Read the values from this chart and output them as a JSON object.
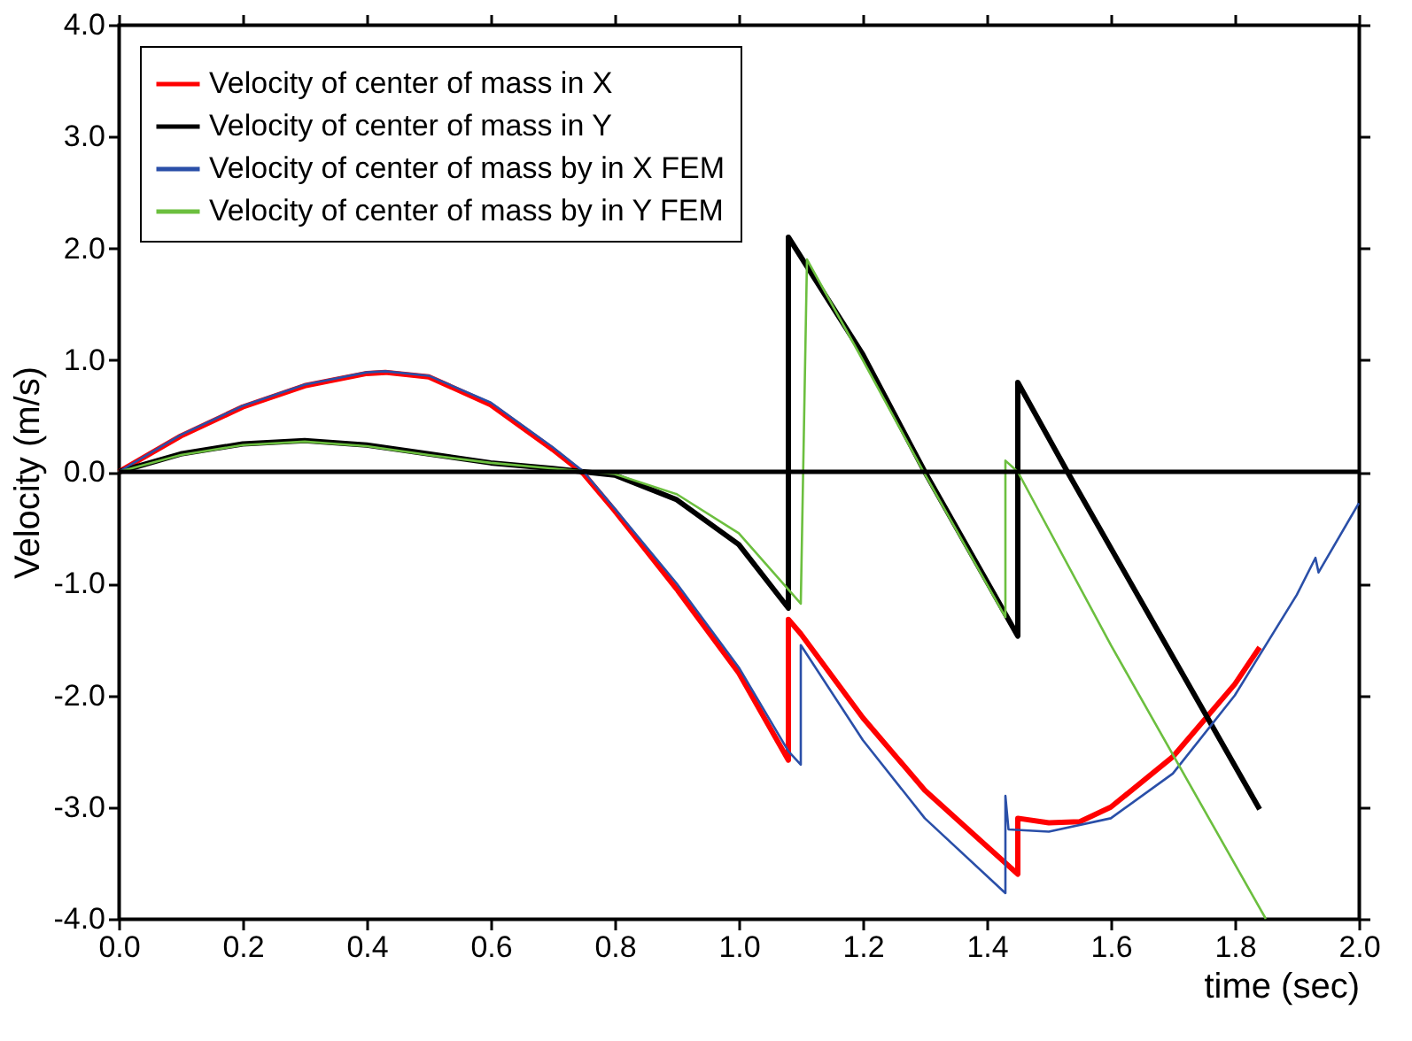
{
  "chart_data": {
    "type": "line",
    "xlabel": "time (sec)",
    "ylabel": "Velocity (m/s)",
    "xlim": [
      0,
      2
    ],
    "ylim": [
      -4,
      4
    ],
    "xticks": [
      {
        "value": 0,
        "label": "0.0"
      },
      {
        "value": 0.2,
        "label": "0.2"
      },
      {
        "value": 0.4,
        "label": "0.4"
      },
      {
        "value": 0.6,
        "label": "0.6"
      },
      {
        "value": 0.8,
        "label": "0.8"
      },
      {
        "value": 1,
        "label": "1.0"
      },
      {
        "value": 1.2,
        "label": "1.2"
      },
      {
        "value": 1.4,
        "label": "1.4"
      },
      {
        "value": 1.6,
        "label": "1.6"
      },
      {
        "value": 1.8,
        "label": "1.8"
      },
      {
        "value": 2,
        "label": "2.0"
      }
    ],
    "yticks": [
      {
        "value": -4,
        "label": "-4.0"
      },
      {
        "value": -3,
        "label": "-3.0"
      },
      {
        "value": -2,
        "label": "-2.0"
      },
      {
        "value": -1,
        "label": "-1.0"
      },
      {
        "value": 0,
        "label": "0.0"
      },
      {
        "value": 1,
        "label": "1.0"
      },
      {
        "value": 2,
        "label": "2.0"
      },
      {
        "value": 3,
        "label": "3.0"
      },
      {
        "value": 4,
        "label": "4.0"
      }
    ],
    "grid": false,
    "legend": "top left",
    "marker": "none",
    "line_style": "solid",
    "ref_lines": [
      {
        "axis": "y",
        "value": 0,
        "color": "#000000"
      }
    ],
    "series": [
      {
        "name": "Velocity of center of mass in X",
        "color": "#ff0000",
        "x": [
          0,
          0.1,
          0.2,
          0.3,
          0.4,
          0.43,
          0.5,
          0.6,
          0.7,
          0.75,
          0.8,
          0.9,
          1.0,
          1.08,
          1.08,
          1.1,
          1.2,
          1.3,
          1.4,
          1.45,
          1.45,
          1.5,
          1.55,
          1.6,
          1.7,
          1.8,
          1.84
        ],
        "values": [
          0,
          0.32,
          0.58,
          0.77,
          0.88,
          0.89,
          0.85,
          0.6,
          0.2,
          -0.02,
          -0.35,
          -1.05,
          -1.8,
          -2.58,
          -1.32,
          -1.45,
          -2.2,
          -2.85,
          -3.35,
          -3.6,
          -3.1,
          -3.14,
          -3.13,
          -3.0,
          -2.55,
          -1.9,
          -1.57
        ]
      },
      {
        "name": "Velocity of center of mass in Y",
        "color": "#000000",
        "x": [
          0,
          0.1,
          0.2,
          0.3,
          0.4,
          0.5,
          0.6,
          0.7,
          0.8,
          0.9,
          1.0,
          1.08,
          1.08,
          1.2,
          1.3,
          1.45,
          1.45,
          1.53,
          1.84
        ],
        "values": [
          0,
          0.16,
          0.25,
          0.28,
          0.24,
          0.16,
          0.08,
          0.03,
          -0.03,
          -0.25,
          -0.65,
          -1.22,
          2.1,
          1.05,
          0.0,
          -1.47,
          0.8,
          0.0,
          -3.02
        ]
      },
      {
        "name": "Velocity of center of mass by in X FEM",
        "color": "#2a4fa8",
        "x": [
          0,
          0.1,
          0.2,
          0.3,
          0.4,
          0.43,
          0.5,
          0.6,
          0.7,
          0.75,
          0.8,
          0.9,
          1.0,
          1.08,
          1.1,
          1.1,
          1.2,
          1.3,
          1.43,
          1.43,
          1.435,
          1.5,
          1.6,
          1.7,
          1.8,
          1.9,
          1.93,
          1.935,
          2.0
        ],
        "values": [
          0,
          0.33,
          0.59,
          0.78,
          0.89,
          0.9,
          0.86,
          0.62,
          0.22,
          0.0,
          -0.33,
          -1.0,
          -1.75,
          -2.5,
          -2.62,
          -1.55,
          -2.4,
          -3.1,
          -3.77,
          -2.9,
          -3.2,
          -3.22,
          -3.1,
          -2.7,
          -2.0,
          -1.1,
          -0.77,
          -0.9,
          -0.28
        ]
      },
      {
        "name": "Velocity of center of mass by in Y FEM",
        "color": "#6cbf3f",
        "x": [
          0,
          0.1,
          0.2,
          0.3,
          0.4,
          0.5,
          0.6,
          0.7,
          0.8,
          0.9,
          1.0,
          1.1,
          1.11,
          1.2,
          1.3,
          1.43,
          1.43,
          1.45,
          1.6,
          1.85
        ],
        "values": [
          0,
          0.15,
          0.24,
          0.27,
          0.23,
          0.15,
          0.08,
          0.03,
          -0.02,
          -0.2,
          -0.55,
          -1.18,
          1.9,
          1.0,
          -0.02,
          -1.3,
          0.1,
          0.0,
          -1.55,
          -4.0
        ]
      }
    ]
  }
}
